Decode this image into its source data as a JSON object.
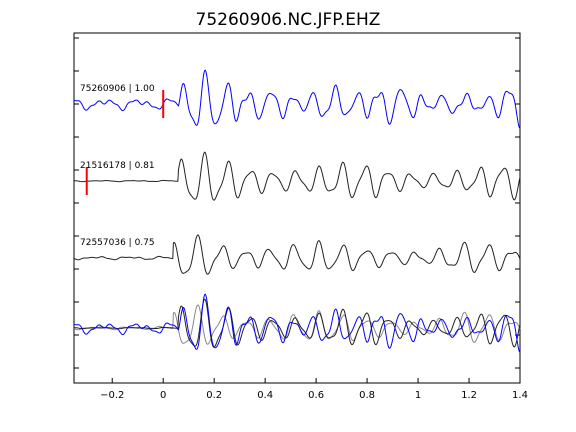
{
  "chart_data": {
    "type": "line",
    "title": "75260906.NC.JFP.EHZ",
    "xlabel": "",
    "ylabel": "",
    "xlim": [
      -0.35,
      1.4
    ],
    "x_ticks": [
      -0.2,
      0,
      0.2,
      0.4,
      0.6,
      0.8,
      1,
      1.2,
      1.4
    ],
    "x_tick_labels": [
      "−0.2",
      "0",
      "0.2",
      "0.4",
      "0.6",
      "0.8",
      "1",
      "1.2",
      "1.4"
    ],
    "grid": false,
    "traces": [
      {
        "label": "75260906 | 1.00",
        "color": "#0000ff",
        "pick_time": 0.0,
        "onset": 0.06,
        "noise": 0.28,
        "amp": 1.0,
        "period": 0.085,
        "phase": 0.0
      },
      {
        "label": "21516178 | 0.81",
        "color": "#222222",
        "pick_time": -0.3,
        "onset": 0.06,
        "noise": 0.03,
        "amp": 1.0,
        "period": 0.09,
        "phase": 0.7
      },
      {
        "label": "72557036 | 0.75",
        "color": "#222222",
        "pick_time": null,
        "onset": 0.04,
        "noise": 0.08,
        "amp": 0.85,
        "period": 0.095,
        "phase": 1.6
      }
    ],
    "overlay": {
      "colors": [
        "#0000ff",
        "#222222",
        "#888888"
      ]
    },
    "pick_color": "#ff0000"
  }
}
